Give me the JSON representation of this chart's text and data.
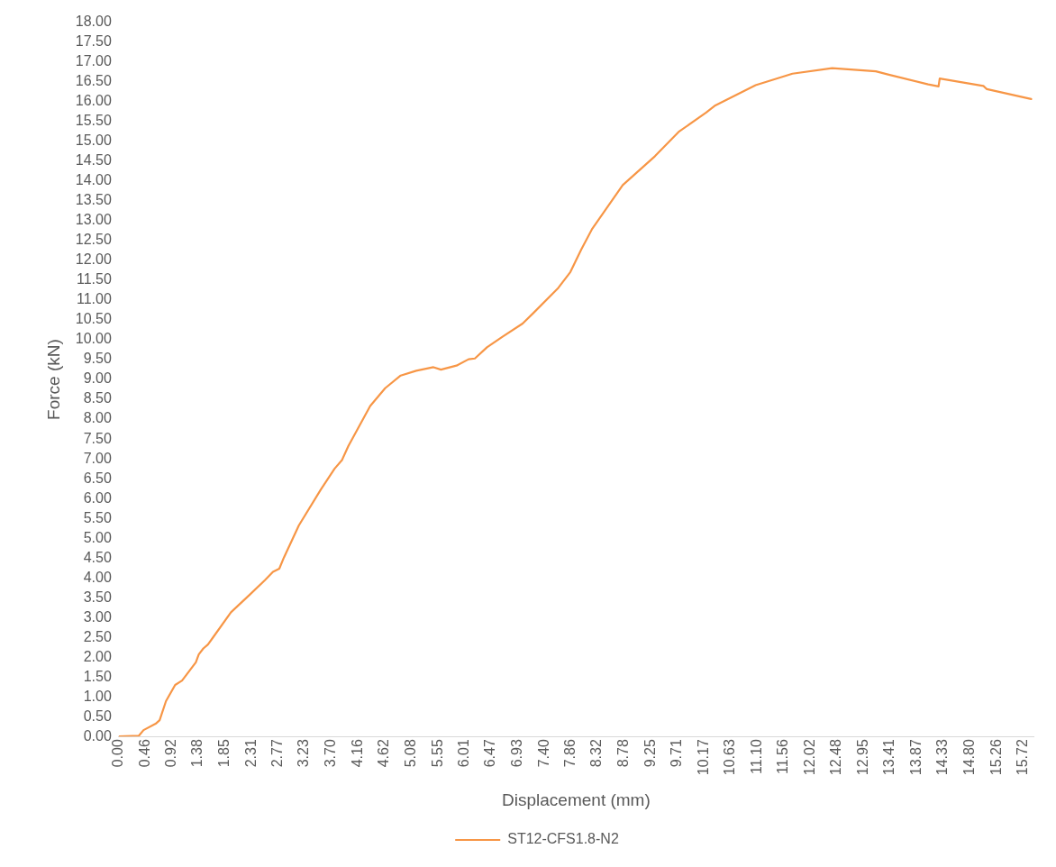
{
  "chart_data": {
    "type": "line",
    "xlabel": "Displacement (mm)",
    "ylabel": "Force (kN)",
    "x": [
      0,
      0.35,
      0.43,
      0.64,
      0.71,
      0.82,
      0.98,
      1.1,
      1.34,
      1.39,
      1.47,
      1.55,
      1.63,
      1.95,
      2.28,
      2.54,
      2.68,
      2.79,
      2.87,
      3.13,
      3.51,
      3.75,
      3.88,
      3.99,
      4.37,
      4.63,
      4.9,
      5.17,
      5.47,
      5.6,
      5.87,
      6.08,
      6.19,
      6.4,
      6.67,
      7.02,
      7.21,
      7.64,
      7.85,
      8.04,
      8.23,
      8.76,
      9.32,
      9.73,
      10.21,
      10.37,
      11.07,
      11.71,
      12.4,
      13.16,
      13.37,
      14.07,
      14.25,
      14.27,
      15.03,
      15.09,
      15.86
    ],
    "series": [
      {
        "name": "ST12-CFS1.8-N2",
        "color": "#f79646",
        "values": [
          0,
          0.02,
          0.16,
          0.32,
          0.41,
          0.89,
          1.3,
          1.41,
          1.87,
          2.07,
          2.22,
          2.32,
          2.48,
          3.13,
          3.58,
          3.94,
          4.15,
          4.23,
          4.51,
          5.32,
          6.22,
          6.75,
          6.97,
          7.32,
          8.33,
          8.78,
          9.1,
          9.22,
          9.31,
          9.25,
          9.35,
          9.51,
          9.53,
          9.81,
          10.08,
          10.41,
          10.68,
          11.31,
          11.71,
          12.28,
          12.8,
          13.9,
          14.63,
          15.24,
          15.73,
          15.91,
          16.42,
          16.71,
          16.85,
          16.77,
          16.69,
          16.44,
          16.39,
          16.59,
          16.4,
          16.32,
          16.07
        ]
      }
    ],
    "xlim": [
      0,
      15.9
    ],
    "xticks": [
      {
        "value": 0,
        "label": "0.00"
      },
      0.46,
      0.92,
      1.38,
      1.85,
      2.31,
      2.77,
      3.23,
      {
        "value": 3.7,
        "label": "3.70"
      },
      4.16,
      4.62,
      5.08,
      5.55,
      6.01,
      6.47,
      6.93,
      {
        "value": 7.4,
        "label": "7.40"
      },
      7.86,
      8.32,
      8.78,
      9.25,
      9.71,
      10.17,
      10.63,
      {
        "value": 11.1,
        "label": "11.10"
      },
      11.56,
      12.02,
      12.48,
      12.95,
      13.41,
      13.87,
      14.33,
      {
        "value": 14.8,
        "label": "14.80"
      },
      15.26,
      15.72
    ],
    "ylim": [
      0,
      18
    ],
    "yticks": [
      {
        "value": 0,
        "label": "0.00"
      },
      {
        "value": 0.5,
        "label": "0.50"
      },
      {
        "value": 1,
        "label": "1.00"
      },
      {
        "value": 1.5,
        "label": "1.50"
      },
      {
        "value": 2,
        "label": "2.00"
      },
      {
        "value": 2.5,
        "label": "2.50"
      },
      {
        "value": 3,
        "label": "3.00"
      },
      {
        "value": 3.5,
        "label": "3.50"
      },
      {
        "value": 4,
        "label": "4.00"
      },
      {
        "value": 4.5,
        "label": "4.50"
      },
      {
        "value": 5,
        "label": "5.00"
      },
      {
        "value": 5.5,
        "label": "5.50"
      },
      {
        "value": 6,
        "label": "6.00"
      },
      {
        "value": 6.5,
        "label": "6.50"
      },
      {
        "value": 7,
        "label": "7.00"
      },
      {
        "value": 7.5,
        "label": "7.50"
      },
      {
        "value": 8,
        "label": "8.00"
      },
      {
        "value": 8.5,
        "label": "8.50"
      },
      {
        "value": 9,
        "label": "9.00"
      },
      {
        "value": 9.5,
        "label": "9.50"
      },
      {
        "value": 10,
        "label": "10.00"
      },
      {
        "value": 10.5,
        "label": "10.50"
      },
      {
        "value": 11,
        "label": "11.00"
      },
      {
        "value": 11.5,
        "label": "11.50"
      },
      {
        "value": 12,
        "label": "12.00"
      },
      {
        "value": 12.5,
        "label": "12.50"
      },
      {
        "value": 13,
        "label": "13.00"
      },
      {
        "value": 13.5,
        "label": "13.50"
      },
      {
        "value": 14,
        "label": "14.00"
      },
      {
        "value": 14.5,
        "label": "14.50"
      },
      {
        "value": 15,
        "label": "15.00"
      },
      {
        "value": 15.5,
        "label": "15.50"
      },
      {
        "value": 16,
        "label": "16.00"
      },
      {
        "value": 16.5,
        "label": "16.50"
      },
      {
        "value": 17,
        "label": "17.00"
      },
      {
        "value": 17.5,
        "label": "17.50"
      },
      {
        "value": 18,
        "label": "18.00"
      }
    ],
    "grid": false,
    "legend": "bottom",
    "marker": "none",
    "line_style": "solid"
  }
}
